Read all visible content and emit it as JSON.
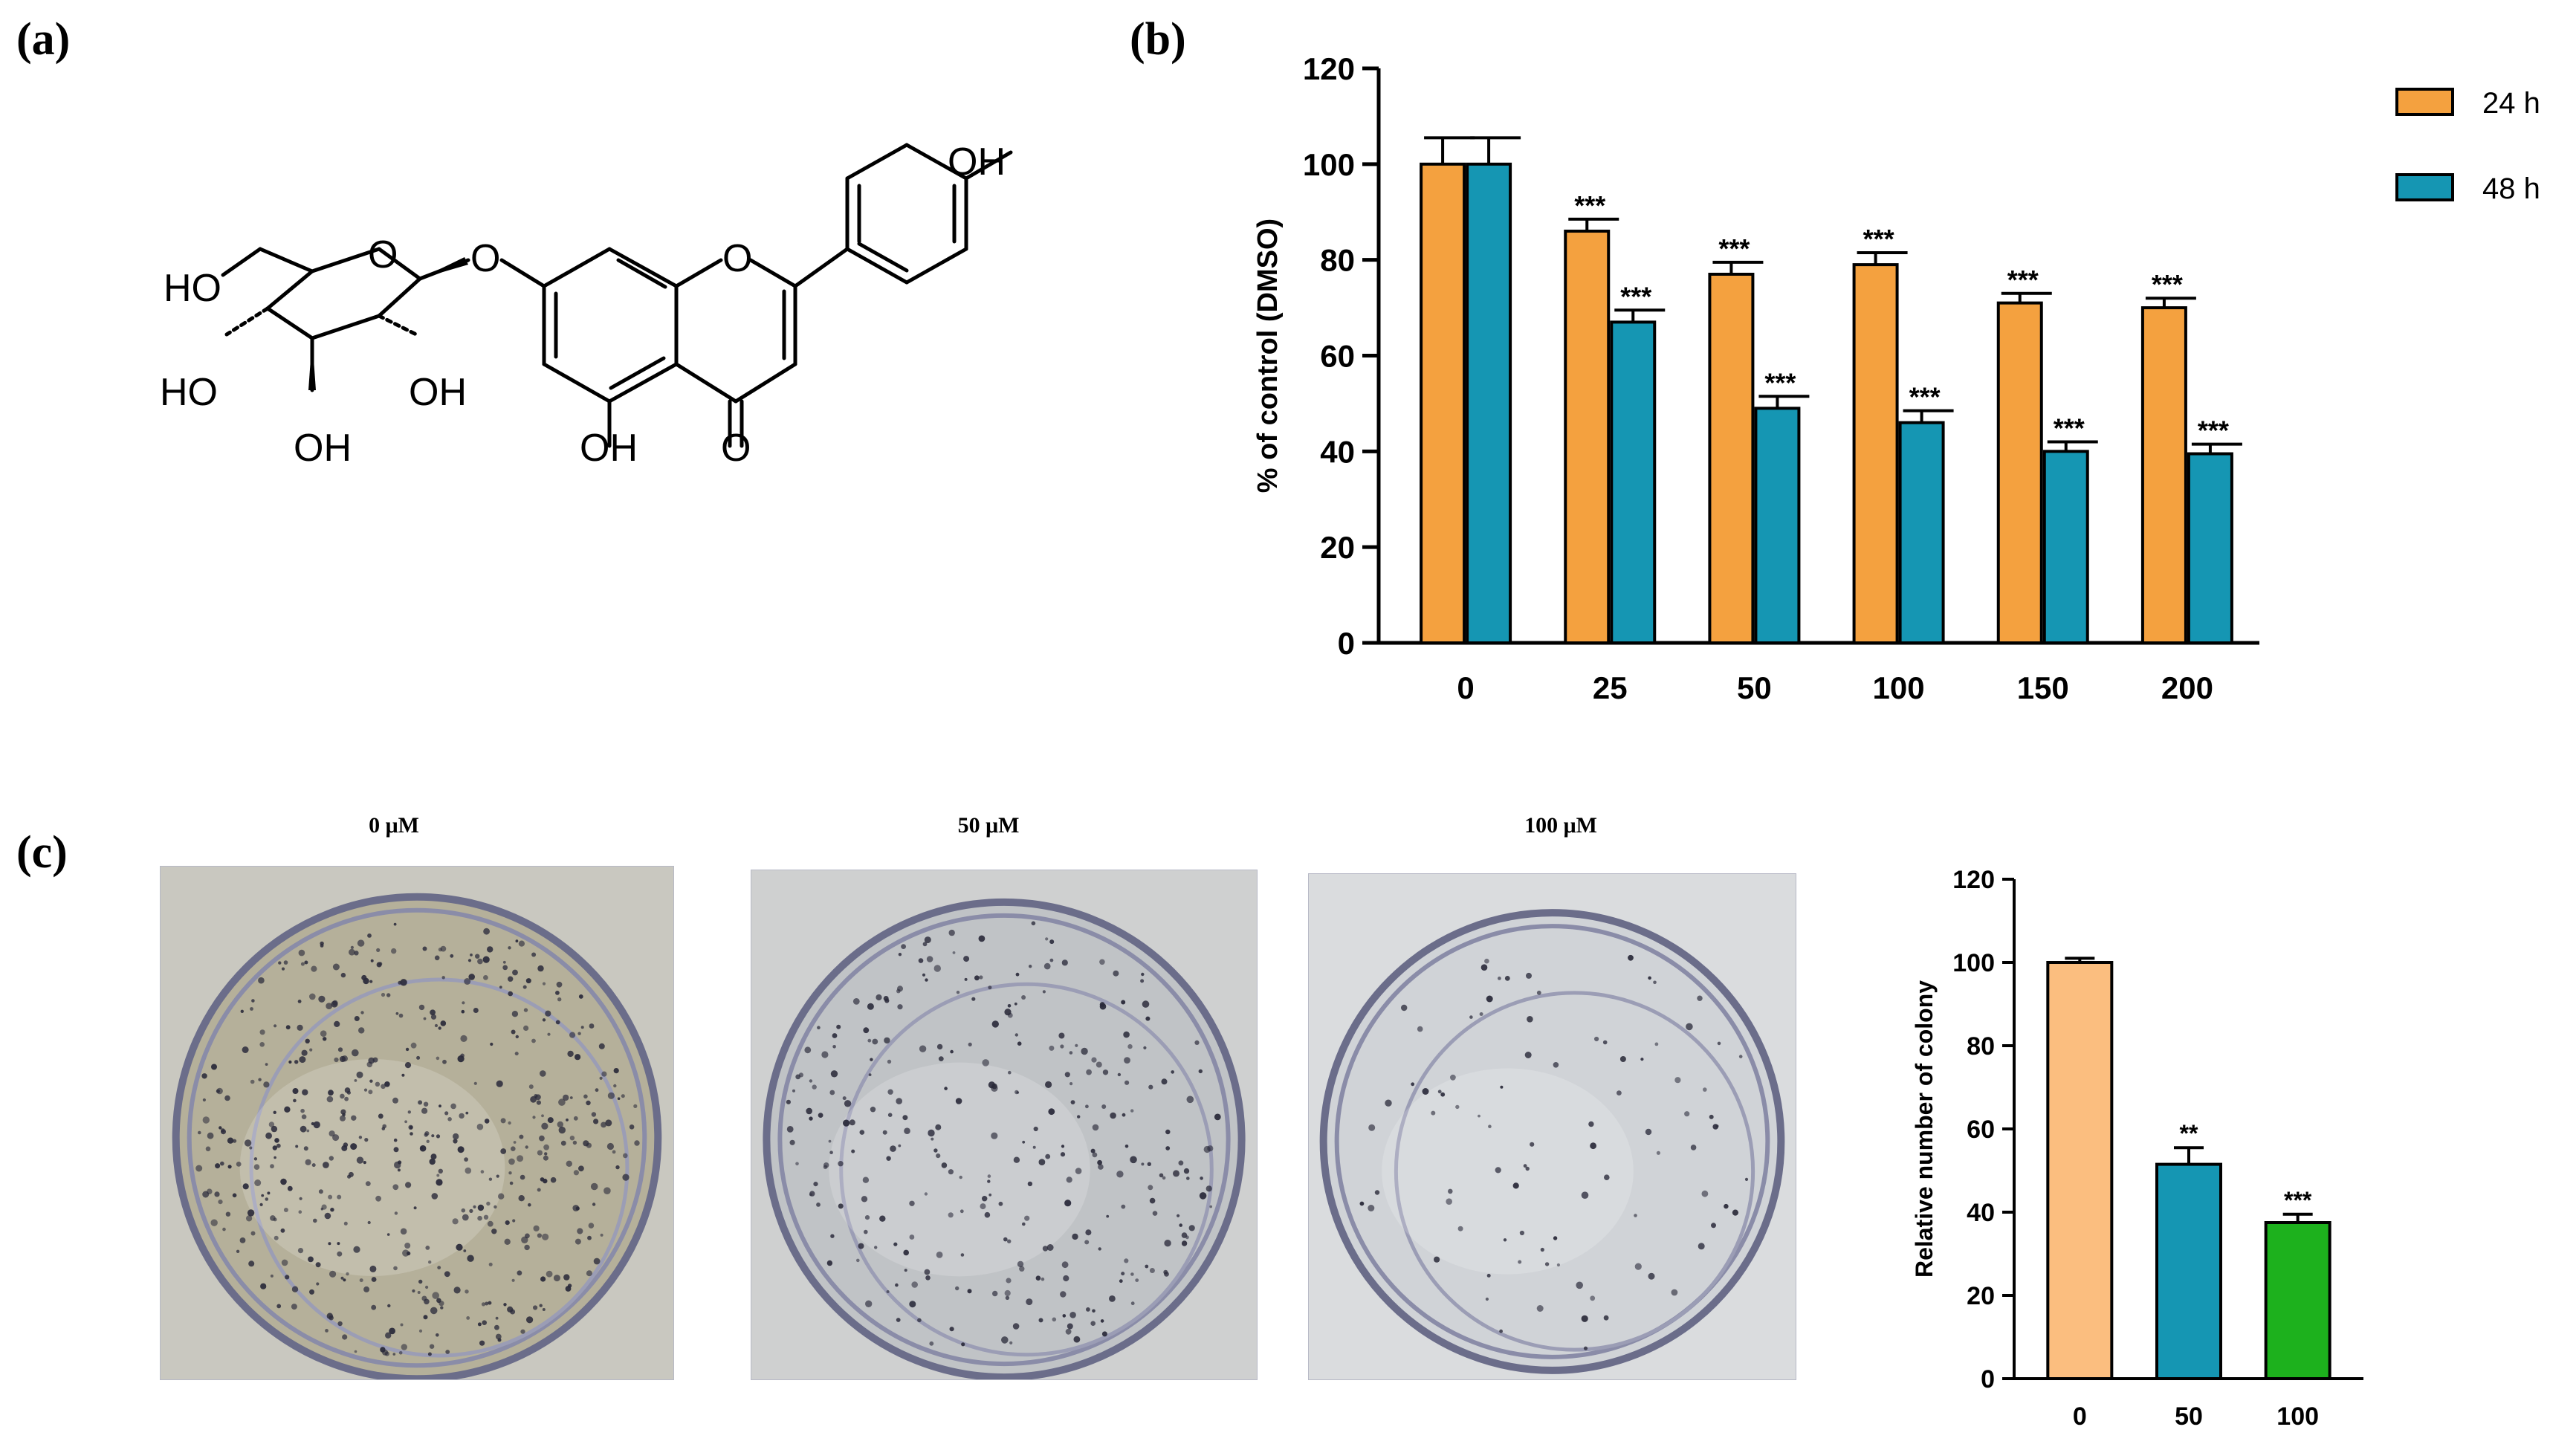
{
  "panels": {
    "a": "(a)",
    "b": "(b)",
    "c": "(c)"
  },
  "molecule": {
    "labels": {
      "oh_top": "OH",
      "ho_left": "HO",
      "ring_o_sugar": "O",
      "glyco_o": "O",
      "ring_o_chromone": "O",
      "ho_sugar_3": "HO",
      "oh_sugar_2": "OH",
      "oh_sugar_4": "OH",
      "oh_c5": "OH",
      "c4_o": "O"
    }
  },
  "photos": {
    "labels": [
      "0 μM",
      "50 μM",
      "100 μM"
    ]
  },
  "colors": {
    "orange": "#F4A13F",
    "teal": "#1596B3",
    "light_orange": "#FBBE7F",
    "green": "#1DB11D"
  },
  "chart_data": [
    {
      "type": "bar",
      "panel": "b",
      "categories": [
        "0",
        "25",
        "50",
        "100",
        "150",
        "200"
      ],
      "series": [
        {
          "name": "24 h",
          "color": "#F4A13F",
          "values": [
            100,
            86,
            77,
            79,
            71,
            70
          ],
          "errors": [
            5.5,
            2.5,
            2.5,
            2.5,
            2,
            2
          ],
          "annotations": [
            "",
            "***",
            "***",
            "***",
            "***",
            "***"
          ]
        },
        {
          "name": "48 h",
          "color": "#1596B3",
          "values": [
            100,
            67,
            49,
            46,
            40,
            39.5
          ],
          "errors": [
            5.5,
            2.5,
            2.5,
            2.5,
            2,
            2
          ],
          "annotations": [
            "",
            "***",
            "***",
            "***",
            "***",
            "***"
          ]
        }
      ],
      "ylabel": "% of control (DMSO)",
      "ylim": [
        0,
        120
      ],
      "yticks": [
        0,
        20,
        40,
        60,
        80,
        100,
        120
      ],
      "legend": "top-right",
      "grid": false
    },
    {
      "type": "bar",
      "panel": "c",
      "categories": [
        "0",
        "50",
        "100"
      ],
      "values": [
        100,
        51.5,
        37.5
      ],
      "errors": [
        1,
        4,
        2
      ],
      "bar_colors": [
        "#FBBE7F",
        "#1596B3",
        "#1DB11D"
      ],
      "annotations": [
        "",
        "**",
        "***"
      ],
      "ylabel": "Relative number of colony",
      "ylim": [
        0,
        120
      ],
      "yticks": [
        0,
        20,
        40,
        60,
        80,
        100,
        120
      ],
      "grid": false
    }
  ]
}
